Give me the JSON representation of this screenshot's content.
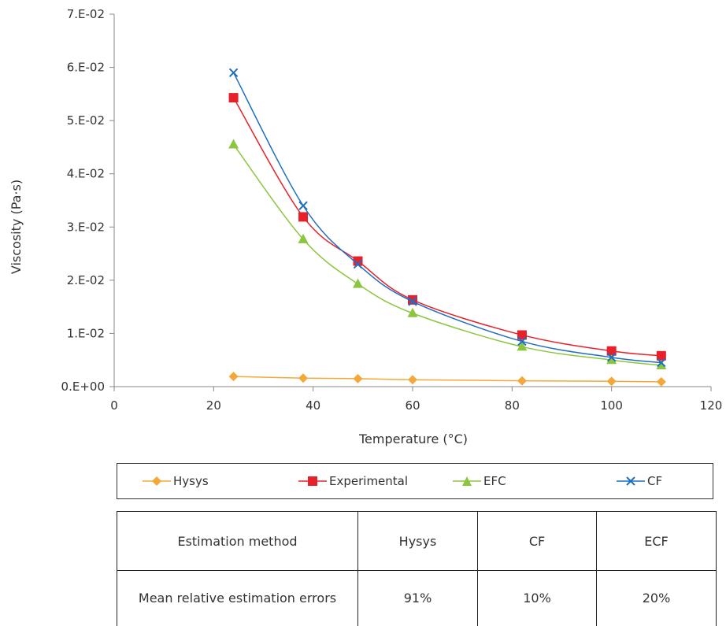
{
  "chart_data": {
    "type": "line",
    "xlabel": "Temperature (°C)",
    "ylabel": "Viscosity (Pa·s)",
    "xlim": [
      0,
      120
    ],
    "ylim": [
      0,
      0.07
    ],
    "x_ticks": [
      "0",
      "20",
      "40",
      "60",
      "80",
      "100",
      "120"
    ],
    "y_ticks": [
      "0.E+00",
      "1.E-02",
      "2.E-02",
      "3.E-02",
      "4.E-02",
      "5.E-02",
      "6.E-02",
      "7.E-02"
    ],
    "x": [
      24,
      38,
      49,
      60,
      82,
      100,
      110
    ],
    "grid": false,
    "legend_position": "bottom",
    "series": [
      {
        "name": "Hysys",
        "color": "#F4A83A",
        "marker": "diamond",
        "values": [
          0.0019,
          0.0016,
          0.0015,
          0.0013,
          0.0011,
          0.001,
          0.0009
        ]
      },
      {
        "name": "Experimental",
        "color": "#E8202A",
        "marker": "square",
        "values": [
          0.0543,
          0.0319,
          0.0236,
          0.0163,
          0.0097,
          0.0067,
          0.0058
        ]
      },
      {
        "name": "EFC",
        "color": "#8CC63F",
        "marker": "triangle",
        "values": [
          0.0455,
          0.0277,
          0.0193,
          0.0138,
          0.0075,
          0.005,
          0.004
        ]
      },
      {
        "name": "CF",
        "color": "#1F6FC0",
        "marker": "x",
        "values": [
          0.059,
          0.034,
          0.023,
          0.016,
          0.0085,
          0.0055,
          0.0045
        ]
      }
    ]
  },
  "table": {
    "header": [
      "Estimation method",
      "Hysys",
      "CF",
      "ECF"
    ],
    "row_label": "Mean relative estimation errors",
    "row_values": [
      "91%",
      "10%",
      "20%"
    ]
  }
}
